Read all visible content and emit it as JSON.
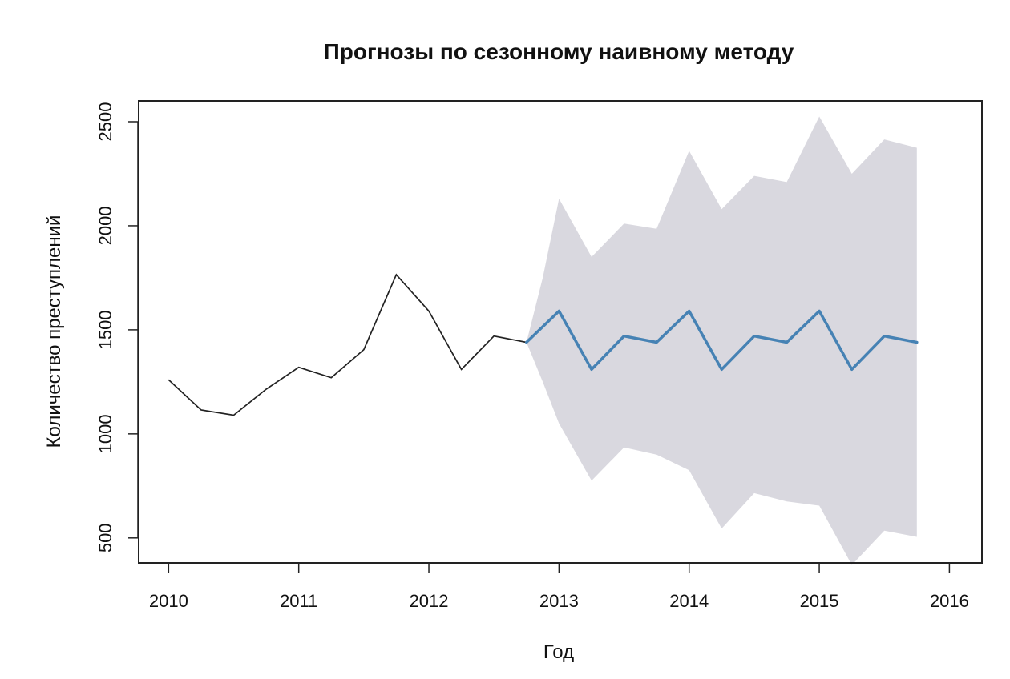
{
  "chart_data": {
    "type": "line",
    "title": "Прогнозы по сезонному наивному методу",
    "xlabel": "Год",
    "ylabel": "Количество преступлений",
    "xlim": [
      2009.77,
      2016.25
    ],
    "ylim": [
      380,
      2600
    ],
    "x_ticks": [
      2010,
      2011,
      2012,
      2013,
      2014,
      2015,
      2016
    ],
    "y_ticks": [
      500,
      1000,
      1500,
      2000,
      2500
    ],
    "grid": false,
    "legend": "none",
    "colors": {
      "history": "#222222",
      "forecast": "#4682b4",
      "interval": "#d9d8df"
    },
    "series": [
      {
        "role": "history",
        "x": [
          2010.0,
          2010.25,
          2010.5,
          2010.75,
          2011.0,
          2011.25,
          2011.5,
          2011.75,
          2012.0,
          2012.25,
          2012.5,
          2012.75
        ],
        "values": [
          1260,
          1115,
          1090,
          1215,
          1320,
          1270,
          1405,
          1765,
          1590,
          1310,
          1470,
          1440
        ]
      },
      {
        "role": "forecast",
        "x": [
          2012.75,
          2013.0,
          2013.25,
          2013.5,
          2013.75,
          2014.0,
          2014.25,
          2014.5,
          2014.75,
          2015.0,
          2015.25,
          2015.5,
          2015.75
        ],
        "values": [
          1440,
          1590,
          1310,
          1470,
          1440,
          1590,
          1310,
          1470,
          1440,
          1590,
          1310,
          1470,
          1440
        ]
      }
    ],
    "interval": {
      "x": [
        2012.75,
        2012.875,
        2013.0,
        2013.25,
        2013.5,
        2013.75,
        2014.0,
        2014.25,
        2014.5,
        2014.75,
        2015.0,
        2015.25,
        2015.5,
        2015.75
      ],
      "upper": [
        1440,
        1750,
        2130,
        1850,
        2010,
        1985,
        2360,
        2080,
        2240,
        2210,
        2525,
        2250,
        2415,
        2375
      ],
      "lower": [
        1440,
        1250,
        1050,
        775,
        935,
        900,
        825,
        545,
        715,
        675,
        655,
        370,
        535,
        505
      ]
    }
  }
}
